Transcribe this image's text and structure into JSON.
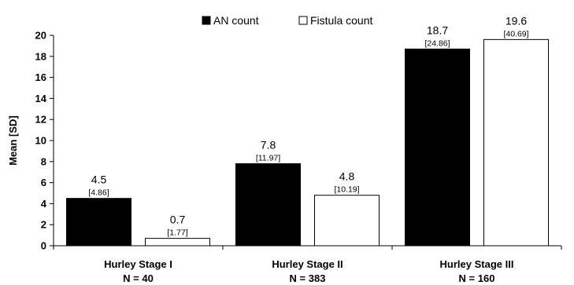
{
  "chart_data": {
    "type": "bar",
    "title": "",
    "xlabel": "",
    "ylabel": "Mean [SD]",
    "ylim": [
      0,
      20
    ],
    "yticks": [
      0,
      2,
      4,
      6,
      8,
      10,
      12,
      14,
      16,
      18,
      20
    ],
    "grid": false,
    "legend_position": "top",
    "categories": [
      {
        "label": "Hurley Stage I",
        "n_label": "N = 40"
      },
      {
        "label": "Hurley Stage II",
        "n_label": "N = 383"
      },
      {
        "label": "Hurley Stage III",
        "n_label": "N = 160"
      }
    ],
    "series": [
      {
        "name": "AN count",
        "color": "#000000",
        "values": [
          4.5,
          7.8,
          18.7
        ],
        "value_labels": [
          "4.5",
          "7.8",
          "18.7"
        ],
        "sd_labels": [
          "[4.86]",
          "[11.97]",
          "[24.86]"
        ]
      },
      {
        "name": "Fistula count",
        "color": "#ffffff",
        "values": [
          0.7,
          4.8,
          19.6
        ],
        "value_labels": [
          "0.7",
          "4.8",
          "19.6"
        ],
        "sd_labels": [
          "[1.77]",
          "[10.19]",
          "[40.69]"
        ]
      }
    ]
  }
}
